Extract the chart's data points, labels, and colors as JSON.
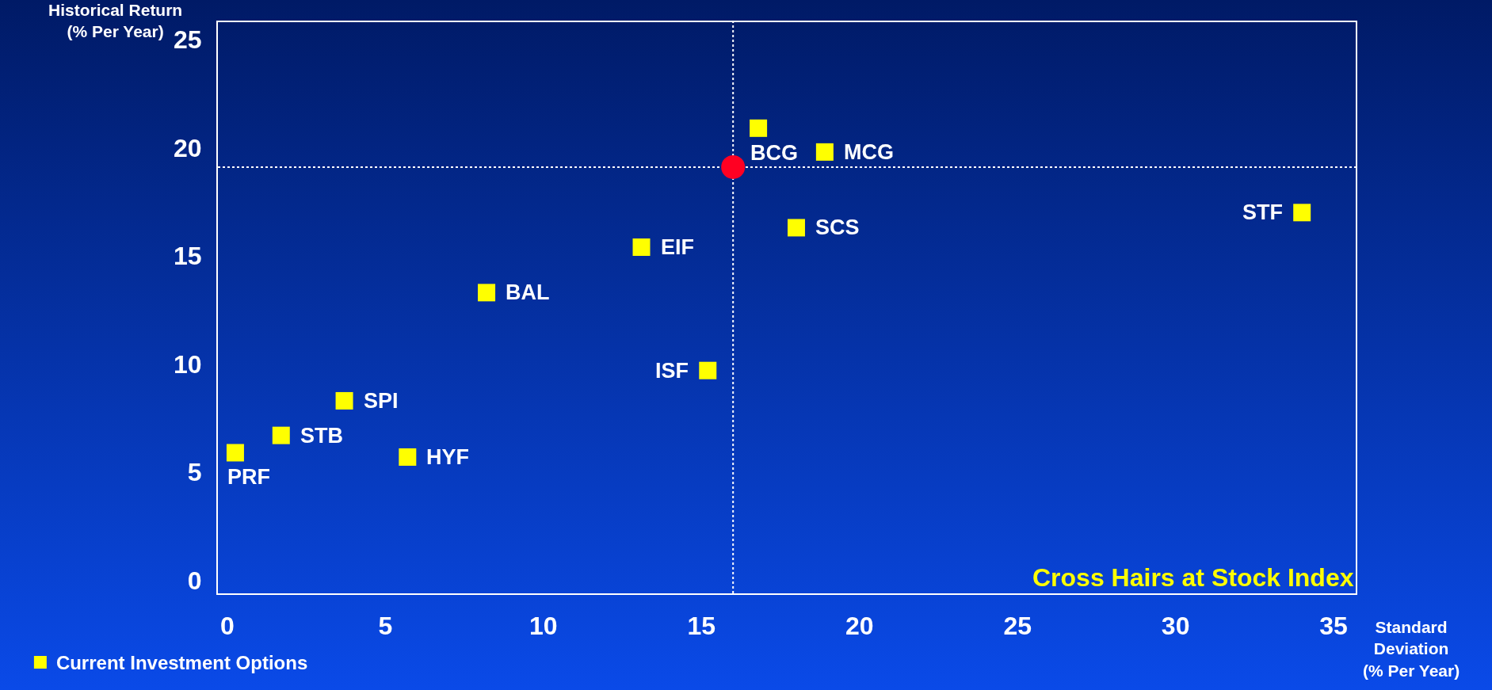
{
  "chart_data": {
    "type": "scatter",
    "xlabel": "Standard\nDeviation\n(% Per Year)",
    "ylabel": "Historical Return\n(% Per Year)",
    "xlim": [
      -0.3,
      35.7
    ],
    "ylim": [
      -0.6,
      25.8
    ],
    "xticks": [
      0,
      5,
      10,
      15,
      20,
      25,
      30,
      35
    ],
    "yticks": [
      0,
      5,
      10,
      15,
      20,
      25
    ],
    "grid": false,
    "legend": "bottom left",
    "series": [
      {
        "name": "Current Investment Options",
        "color": "#ffff00",
        "marker": "square",
        "x": [
          0.25,
          1.7,
          3.7,
          5.7,
          8.2,
          13.1,
          15.2,
          16.8,
          18.9,
          18.0,
          34.0
        ],
        "values": [
          5.9,
          6.7,
          8.3,
          5.7,
          13.3,
          15.4,
          9.7,
          20.9,
          19.8,
          16.3,
          17.0
        ]
      },
      {
        "color": "#ff0022",
        "marker": "circle",
        "x": [
          16.0
        ],
        "values": [
          19.1
        ]
      }
    ],
    "ref_lines": [
      {
        "axis": "x",
        "value": 16.0,
        "color": "#ffffff",
        "line_style": "dotted"
      },
      {
        "axis": "y",
        "value": 19.1,
        "color": "#ffffff",
        "line_style": "dotted"
      }
    ],
    "annotations": [
      {
        "text": "PRF",
        "x": 0.25,
        "y": 5.9
      },
      {
        "text": "STB",
        "x": 1.7,
        "y": 6.7
      },
      {
        "text": "SPI",
        "x": 3.7,
        "y": 8.3
      },
      {
        "text": "HYF",
        "x": 5.7,
        "y": 5.7
      },
      {
        "text": "BAL",
        "x": 8.2,
        "y": 13.3
      },
      {
        "text": "EIF",
        "x": 13.1,
        "y": 15.4
      },
      {
        "text": "ISF",
        "x": 15.2,
        "y": 9.7
      },
      {
        "text": "BCG",
        "x": 16.8,
        "y": 20.9
      },
      {
        "text": "MCG",
        "x": 18.9,
        "y": 19.8
      },
      {
        "text": "SCS",
        "x": 18.0,
        "y": 16.3
      },
      {
        "text": "STF",
        "x": 34.0,
        "y": 17.0
      },
      "Cross Hairs at Stock Index"
    ]
  }
}
